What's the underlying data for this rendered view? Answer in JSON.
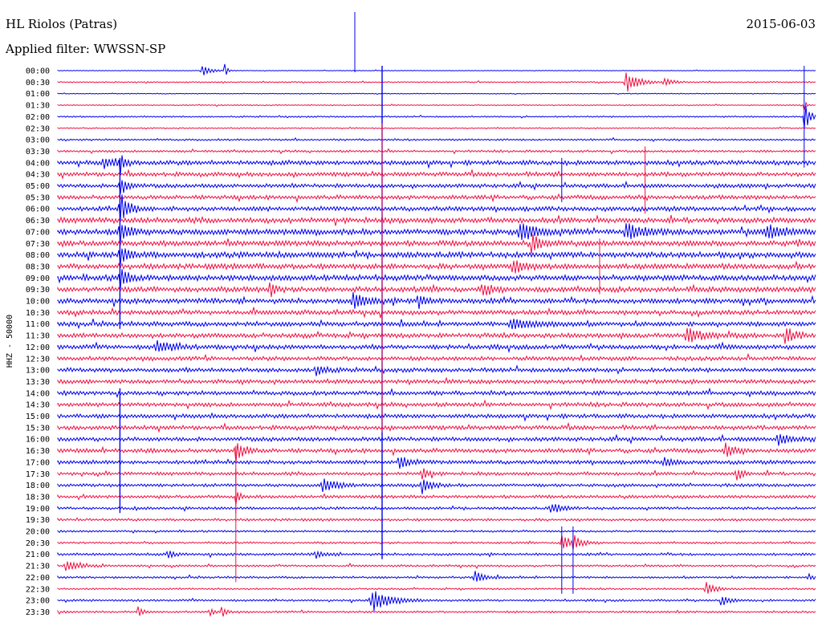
{
  "header": {
    "station": "HL Riolos (Patras)",
    "date": "2015-06-03",
    "filter": "Applied filter: WWSSN-SP"
  },
  "chart_data": {
    "type": "line",
    "title": "HL Riolos (Patras)",
    "subtitle": "Applied filter: WWSSN-SP",
    "ylabel": "HHZ - 50000",
    "xlabel": "",
    "grid": false,
    "colors": [
      "#0000ee",
      "#ee1144"
    ],
    "rows": [
      "00:00",
      "00:30",
      "01:00",
      "01:30",
      "02:00",
      "02:30",
      "03:00",
      "03:30",
      "04:00",
      "04:30",
      "05:00",
      "05:30",
      "06:00",
      "06:30",
      "07:00",
      "07:30",
      "08:00",
      "08:30",
      "09:00",
      "09:30",
      "10:00",
      "10:30",
      "11:00",
      "11:30",
      "12:00",
      "12:30",
      "13:00",
      "13:30",
      "14:00",
      "14:30",
      "15:00",
      "15:30",
      "16:00",
      "16:30",
      "17:00",
      "17:30",
      "18:00",
      "18:30",
      "19:00",
      "19:30",
      "20:00",
      "20:30",
      "21:00",
      "21:30",
      "22:00",
      "22:30",
      "23:00",
      "23:30"
    ],
    "row_noise": [
      0.3,
      0.6,
      0.4,
      0.5,
      0.7,
      0.6,
      0.9,
      1.1,
      2.2,
      2.0,
      1.9,
      2.0,
      2.2,
      2.6,
      2.8,
      2.6,
      2.8,
      2.6,
      2.8,
      2.6,
      2.4,
      2.2,
      2.2,
      2.2,
      2.2,
      2.0,
      2.0,
      2.0,
      2.0,
      2.0,
      2.0,
      2.0,
      2.0,
      2.0,
      1.9,
      1.6,
      1.5,
      1.5,
      1.3,
      1.2,
      1.0,
      1.0,
      1.2,
      1.0,
      1.0,
      0.8,
      1.0,
      1.0
    ],
    "events": [
      {
        "row": 0,
        "t": 0.19,
        "a": 8,
        "w": 0.004
      },
      {
        "row": 0,
        "t": 0.22,
        "a": 12,
        "w": 0.001
      },
      {
        "row": 1,
        "t": 0.75,
        "a": 14,
        "w": 0.006
      },
      {
        "row": 1,
        "t": 0.8,
        "a": 5,
        "w": 0.004
      },
      {
        "row": 3,
        "t": 0.985,
        "a": 7,
        "w": 0.001
      },
      {
        "row": 4,
        "t": 0.985,
        "a": 18,
        "w": 0.003
      },
      {
        "row": 8,
        "t": 0.082,
        "a": 14,
        "w": 0.002
      },
      {
        "row": 8,
        "t": 0.06,
        "a": 6,
        "w": 0.006
      },
      {
        "row": 10,
        "t": 0.082,
        "a": 14,
        "w": 0.003
      },
      {
        "row": 12,
        "t": 0.082,
        "a": 20,
        "w": 0.004
      },
      {
        "row": 14,
        "t": 0.082,
        "a": 14,
        "w": 0.004
      },
      {
        "row": 14,
        "t": 0.61,
        "a": 10,
        "w": 0.008
      },
      {
        "row": 14,
        "t": 0.75,
        "a": 9,
        "w": 0.008
      },
      {
        "row": 14,
        "t": 0.935,
        "a": 9,
        "w": 0.008
      },
      {
        "row": 15,
        "t": 0.625,
        "a": 12,
        "w": 0.004
      },
      {
        "row": 16,
        "t": 0.082,
        "a": 12,
        "w": 0.004
      },
      {
        "row": 17,
        "t": 0.6,
        "a": 9,
        "w": 0.006
      },
      {
        "row": 18,
        "t": 0.082,
        "a": 12,
        "w": 0.004
      },
      {
        "row": 19,
        "t": 0.28,
        "a": 12,
        "w": 0.002
      },
      {
        "row": 19,
        "t": 0.56,
        "a": 9,
        "w": 0.004
      },
      {
        "row": 20,
        "t": 0.39,
        "a": 10,
        "w": 0.006
      },
      {
        "row": 20,
        "t": 0.475,
        "a": 10,
        "w": 0.003
      },
      {
        "row": 22,
        "t": 0.6,
        "a": 6,
        "w": 0.012
      },
      {
        "row": 23,
        "t": 0.83,
        "a": 8,
        "w": 0.008
      },
      {
        "row": 23,
        "t": 0.96,
        "a": 12,
        "w": 0.004
      },
      {
        "row": 24,
        "t": 0.13,
        "a": 7,
        "w": 0.008
      },
      {
        "row": 26,
        "t": 0.34,
        "a": 7,
        "w": 0.004
      },
      {
        "row": 32,
        "t": 0.95,
        "a": 8,
        "w": 0.006
      },
      {
        "row": 33,
        "t": 0.235,
        "a": 14,
        "w": 0.004
      },
      {
        "row": 33,
        "t": 0.88,
        "a": 9,
        "w": 0.004
      },
      {
        "row": 34,
        "t": 0.45,
        "a": 10,
        "w": 0.004
      },
      {
        "row": 34,
        "t": 0.8,
        "a": 7,
        "w": 0.004
      },
      {
        "row": 35,
        "t": 0.48,
        "a": 9,
        "w": 0.003
      },
      {
        "row": 35,
        "t": 0.895,
        "a": 9,
        "w": 0.003
      },
      {
        "row": 36,
        "t": 0.35,
        "a": 10,
        "w": 0.006
      },
      {
        "row": 36,
        "t": 0.48,
        "a": 12,
        "w": 0.004
      },
      {
        "row": 37,
        "t": 0.235,
        "a": 10,
        "w": 0.002
      },
      {
        "row": 38,
        "t": 0.65,
        "a": 6,
        "w": 0.006
      },
      {
        "row": 41,
        "t": 0.665,
        "a": 12,
        "w": 0.004
      },
      {
        "row": 41,
        "t": 0.68,
        "a": 8,
        "w": 0.004
      },
      {
        "row": 42,
        "t": 0.145,
        "a": 6,
        "w": 0.003
      },
      {
        "row": 42,
        "t": 0.34,
        "a": 5,
        "w": 0.004
      },
      {
        "row": 43,
        "t": 0.01,
        "a": 7,
        "w": 0.006
      },
      {
        "row": 44,
        "t": 0.55,
        "a": 9,
        "w": 0.004
      },
      {
        "row": 44,
        "t": 0.99,
        "a": 5,
        "w": 0.002
      },
      {
        "row": 45,
        "t": 0.855,
        "a": 9,
        "w": 0.004
      },
      {
        "row": 46,
        "t": 0.415,
        "a": 14,
        "w": 0.009
      },
      {
        "row": 46,
        "t": 0.875,
        "a": 7,
        "w": 0.004
      },
      {
        "row": 47,
        "t": 0.105,
        "a": 10,
        "w": 0.002
      },
      {
        "row": 47,
        "t": 0.2,
        "a": 7,
        "w": 0.002
      },
      {
        "row": 47,
        "t": 0.215,
        "a": 9,
        "w": 0.002
      }
    ],
    "spikes": [
      {
        "t": 0.428,
        "row_start": 0,
        "row_end": 42
      },
      {
        "t": 0.082,
        "row_start": 8,
        "row_end": 22
      },
      {
        "t": 0.082,
        "row_start": 28,
        "row_end": 38
      },
      {
        "t": 0.428,
        "row_start": 5,
        "row_end": 31
      },
      {
        "t": 0.985,
        "row_start": 0,
        "row_end": 8
      },
      {
        "t": 0.775,
        "row_start": 7,
        "row_end": 12
      },
      {
        "t": 0.665,
        "row_start": 8,
        "row_end": 11
      },
      {
        "t": 0.235,
        "row_start": 35,
        "row_end": 44
      },
      {
        "t": 0.665,
        "row_start": 40,
        "row_end": 45
      },
      {
        "t": 0.68,
        "row_start": 40,
        "row_end": 45
      },
      {
        "t": 0.715,
        "row_start": 15,
        "row_end": 19
      },
      {
        "t": 0.235,
        "row_start": 33,
        "row_end": 38
      }
    ]
  }
}
